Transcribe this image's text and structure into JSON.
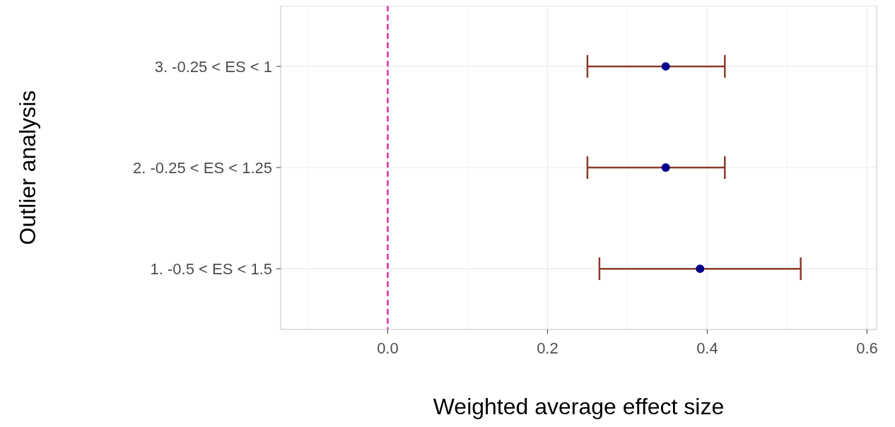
{
  "chart_data": {
    "type": "scatter",
    "orientation": "horizontal",
    "xlabel": "Weighted average effect size",
    "ylabel": "Outlier analysis",
    "categories": [
      "3. -0.25 < ES < 1",
      "2. -0.25 < ES < 1.25",
      "1. -0.5 < ES < 1.5"
    ],
    "series": [
      {
        "color": "#00008b",
        "values": [
          0.348,
          0.348,
          0.391
        ],
        "errors": [
          [
            0.25,
            0.422
          ],
          [
            0.25,
            0.422
          ],
          [
            0.265,
            0.517
          ]
        ]
      }
    ],
    "xlim": [
      -0.134,
      0.612
    ],
    "xticks": [
      {
        "value": 0,
        "label": "0.0"
      },
      {
        "value": 0.2,
        "label": "0.2"
      },
      {
        "value": 0.4,
        "label": "0.4"
      },
      {
        "value": 0.6,
        "label": "0.6"
      }
    ],
    "ref_lines": [
      {
        "axis": "x",
        "value": 0,
        "color": "#d62ba0",
        "line_style": "dashed"
      }
    ],
    "grid": true,
    "marker": "circle"
  }
}
